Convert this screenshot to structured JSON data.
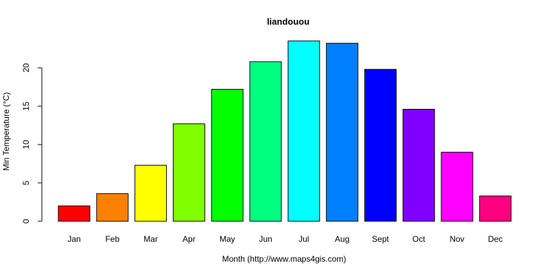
{
  "chart_data": {
    "type": "bar",
    "title": "liandouou",
    "xlabel": "Month (http://www.maps4gis.com)",
    "ylabel": "Min Temperature (°C)",
    "categories": [
      "Jan",
      "Feb",
      "Mar",
      "Apr",
      "May",
      "Jun",
      "Jul",
      "Aug",
      "Sept",
      "Oct",
      "Nov",
      "Dec"
    ],
    "values": [
      2.0,
      3.6,
      7.3,
      12.7,
      17.2,
      20.8,
      23.5,
      23.2,
      19.8,
      14.6,
      9.0,
      3.3
    ],
    "colors": [
      "#FF0000",
      "#FF8000",
      "#FFFF00",
      "#80FF00",
      "#00FF00",
      "#00FF80",
      "#00FFFF",
      "#0080FF",
      "#0000FF",
      "#8000FF",
      "#FF00FF",
      "#FF0080"
    ],
    "yticks": [
      0,
      5,
      10,
      15,
      20
    ],
    "ylim": [
      0,
      24
    ],
    "grid": false,
    "legend": "none"
  }
}
